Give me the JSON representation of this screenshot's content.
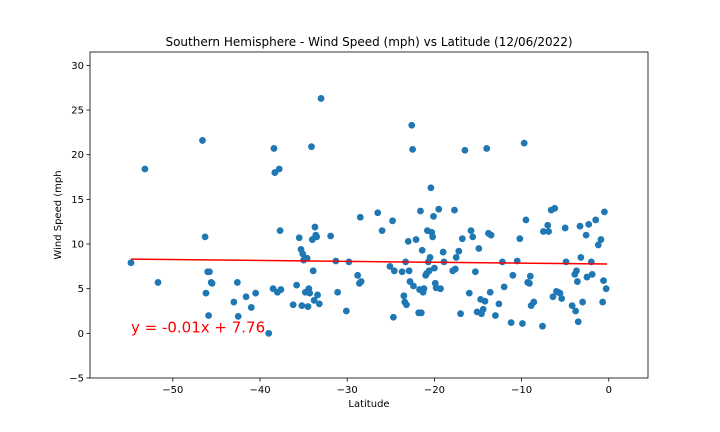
{
  "chart_data": {
    "type": "scatter",
    "title": "Southern Hemisphere - Wind Speed (mph) vs Latitude (12/06/2022)",
    "xlabel": "Latitude",
    "ylabel": "Wind Speed (mph",
    "xlim": [
      -59.5,
      4.5
    ],
    "ylim": [
      -5,
      31.5
    ],
    "xticks": [
      -50,
      -40,
      -30,
      -20,
      -10,
      0
    ],
    "yticks": [
      -5,
      0,
      5,
      10,
      15,
      20,
      25,
      30
    ],
    "grid": false,
    "point_color": "#1f77b4",
    "line_color": "#ff0000",
    "regression": {
      "slope": -0.01,
      "intercept": 7.76,
      "x_range": [
        -54.8,
        -0.2
      ]
    },
    "annotation": {
      "text": "y = -0.01x + 7.76",
      "x": -54.8,
      "y": 0.1,
      "color": "#ff0000"
    },
    "points": [
      [
        -54.8,
        7.9
      ],
      [
        -53.2,
        18.4
      ],
      [
        -51.7,
        5.7
      ],
      [
        -46.6,
        21.6
      ],
      [
        -46.3,
        10.8
      ],
      [
        -46.2,
        4.5
      ],
      [
        -46.0,
        6.9
      ],
      [
        -45.8,
        6.9
      ],
      [
        -45.9,
        2.0
      ],
      [
        -45.6,
        5.7
      ],
      [
        -45.5,
        5.6
      ],
      [
        -43.0,
        3.5
      ],
      [
        -42.6,
        5.7
      ],
      [
        -42.5,
        1.9
      ],
      [
        -41.6,
        4.1
      ],
      [
        -41.0,
        2.9
      ],
      [
        -40.5,
        4.5
      ],
      [
        -39.0,
        0.0
      ],
      [
        -38.5,
        5.0
      ],
      [
        -38.4,
        20.7
      ],
      [
        -38.3,
        18.0
      ],
      [
        -38.0,
        4.6
      ],
      [
        -37.8,
        18.4
      ],
      [
        -37.7,
        11.5
      ],
      [
        -37.6,
        4.9
      ],
      [
        -36.2,
        3.2
      ],
      [
        -35.8,
        5.4
      ],
      [
        -35.5,
        10.7
      ],
      [
        -35.3,
        9.4
      ],
      [
        -35.2,
        3.1
      ],
      [
        -35.1,
        8.9
      ],
      [
        -35.0,
        8.2
      ],
      [
        -34.8,
        4.6
      ],
      [
        -34.6,
        8.4
      ],
      [
        -34.5,
        3.0
      ],
      [
        -34.4,
        5.0
      ],
      [
        -34.3,
        4.5
      ],
      [
        -34.1,
        20.9
      ],
      [
        -34.0,
        10.5
      ],
      [
        -33.9,
        7.0
      ],
      [
        -33.8,
        3.7
      ],
      [
        -33.7,
        11.9
      ],
      [
        -33.6,
        11.0
      ],
      [
        -33.5,
        10.8
      ],
      [
        -33.4,
        4.3
      ],
      [
        -33.2,
        3.3
      ],
      [
        -33.0,
        26.3
      ],
      [
        -31.9,
        10.9
      ],
      [
        -31.3,
        8.1
      ],
      [
        -31.1,
        4.6
      ],
      [
        -30.1,
        2.5
      ],
      [
        -29.8,
        8.0
      ],
      [
        -28.8,
        6.5
      ],
      [
        -28.6,
        5.6
      ],
      [
        -28.5,
        13.0
      ],
      [
        -28.4,
        5.8
      ],
      [
        -26.5,
        13.5
      ],
      [
        -26.0,
        11.5
      ],
      [
        -25.1,
        7.5
      ],
      [
        -24.8,
        12.6
      ],
      [
        -24.7,
        1.8
      ],
      [
        -24.6,
        7.0
      ],
      [
        -23.7,
        6.9
      ],
      [
        -23.5,
        4.2
      ],
      [
        -23.4,
        3.5
      ],
      [
        -23.3,
        8.0
      ],
      [
        -23.2,
        3.2
      ],
      [
        -23.0,
        10.3
      ],
      [
        -22.9,
        7.0
      ],
      [
        -22.8,
        5.8
      ],
      [
        -22.6,
        23.3
      ],
      [
        -22.5,
        20.6
      ],
      [
        -22.4,
        5.3
      ],
      [
        -22.1,
        10.5
      ],
      [
        -21.8,
        2.3
      ],
      [
        -21.7,
        4.9
      ],
      [
        -21.6,
        13.7
      ],
      [
        -21.5,
        2.3
      ],
      [
        -21.4,
        9.3
      ],
      [
        -21.3,
        4.6
      ],
      [
        -21.2,
        5.0
      ],
      [
        -21.0,
        6.5
      ],
      [
        -20.9,
        6.7
      ],
      [
        -20.8,
        11.5
      ],
      [
        -20.7,
        8.0
      ],
      [
        -20.6,
        7.0
      ],
      [
        -20.5,
        8.5
      ],
      [
        -20.4,
        16.3
      ],
      [
        -20.3,
        11.3
      ],
      [
        -20.2,
        10.8
      ],
      [
        -20.1,
        13.1
      ],
      [
        -20.0,
        7.3
      ],
      [
        -19.9,
        5.6
      ],
      [
        -19.8,
        5.1
      ],
      [
        -19.5,
        13.9
      ],
      [
        -19.3,
        5.0
      ],
      [
        -19.0,
        9.1
      ],
      [
        -18.9,
        8.0
      ],
      [
        -17.9,
        7.0
      ],
      [
        -17.7,
        13.8
      ],
      [
        -17.6,
        7.2
      ],
      [
        -17.5,
        8.5
      ],
      [
        -17.2,
        9.2
      ],
      [
        -17.0,
        2.2
      ],
      [
        -16.8,
        10.6
      ],
      [
        -16.5,
        20.5
      ],
      [
        -16.0,
        4.5
      ],
      [
        -15.8,
        11.5
      ],
      [
        -15.6,
        10.8
      ],
      [
        -15.3,
        6.9
      ],
      [
        -15.1,
        2.4
      ],
      [
        -14.9,
        9.5
      ],
      [
        -14.7,
        3.8
      ],
      [
        -14.6,
        2.2
      ],
      [
        -14.4,
        2.7
      ],
      [
        -14.2,
        3.6
      ],
      [
        -14.0,
        20.7
      ],
      [
        -13.8,
        11.2
      ],
      [
        -13.6,
        4.6
      ],
      [
        -13.5,
        11.0
      ],
      [
        -13.0,
        2.0
      ],
      [
        -12.6,
        3.3
      ],
      [
        -12.2,
        8.0
      ],
      [
        -12.0,
        5.2
      ],
      [
        -11.2,
        1.2
      ],
      [
        -11.0,
        6.5
      ],
      [
        -10.5,
        8.1
      ],
      [
        -10.2,
        10.6
      ],
      [
        -9.9,
        1.1
      ],
      [
        -9.7,
        21.3
      ],
      [
        -9.5,
        12.7
      ],
      [
        -9.3,
        5.7
      ],
      [
        -9.1,
        5.6
      ],
      [
        -9.0,
        6.4
      ],
      [
        -8.9,
        3.1
      ],
      [
        -8.6,
        3.5
      ],
      [
        -7.6,
        0.8
      ],
      [
        -7.5,
        11.4
      ],
      [
        -7.0,
        12.1
      ],
      [
        -6.9,
        11.4
      ],
      [
        -6.6,
        13.8
      ],
      [
        -6.4,
        4.1
      ],
      [
        -6.2,
        14.0
      ],
      [
        -6.0,
        4.7
      ],
      [
        -5.8,
        4.6
      ],
      [
        -5.6,
        4.5
      ],
      [
        -5.4,
        3.9
      ],
      [
        -5.0,
        11.8
      ],
      [
        -4.9,
        8.0
      ],
      [
        -4.2,
        3.1
      ],
      [
        -3.9,
        6.6
      ],
      [
        -3.8,
        2.5
      ],
      [
        -3.7,
        7.0
      ],
      [
        -3.6,
        5.8
      ],
      [
        -3.5,
        1.3
      ],
      [
        -3.3,
        12.0
      ],
      [
        -3.2,
        8.5
      ],
      [
        -3.0,
        3.5
      ],
      [
        -2.6,
        11.0
      ],
      [
        -2.5,
        6.3
      ],
      [
        -2.3,
        12.2
      ],
      [
        -2.0,
        8.0
      ],
      [
        -1.9,
        6.6
      ],
      [
        -1.5,
        12.7
      ],
      [
        -1.2,
        9.9
      ],
      [
        -0.9,
        10.5
      ],
      [
        -0.7,
        3.5
      ],
      [
        -0.6,
        5.9
      ],
      [
        -0.5,
        13.6
      ],
      [
        -0.3,
        5.0
      ]
    ]
  }
}
